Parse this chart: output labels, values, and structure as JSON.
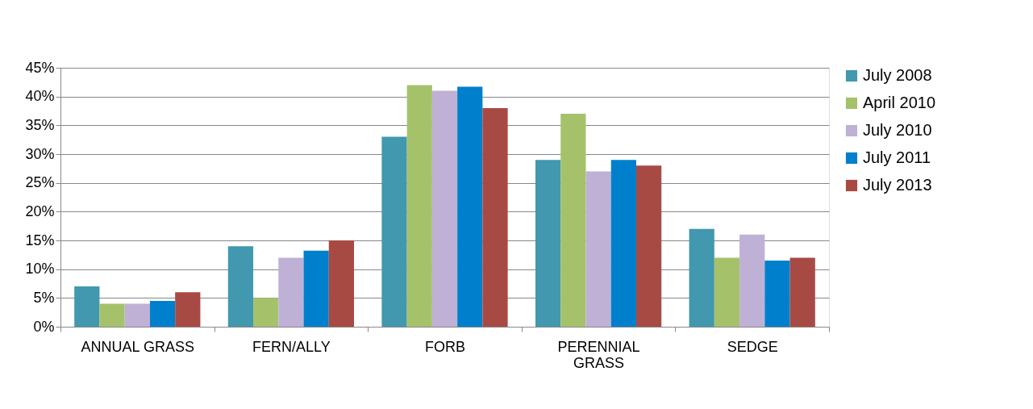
{
  "chart_data": {
    "type": "bar",
    "categories": [
      "ANNUAL GRASS",
      "FERN/ALLY",
      "FORB",
      "PERENNIAL GRASS",
      "SEDGE"
    ],
    "series": [
      {
        "name": "July 2008",
        "color": "#4198af",
        "values": [
          7,
          14,
          33,
          29,
          17
        ]
      },
      {
        "name": "April 2010",
        "color": "#a5c26b",
        "values": [
          4,
          5,
          42,
          37,
          12
        ]
      },
      {
        "name": "July 2010",
        "color": "#bfb1d5",
        "values": [
          4,
          12,
          41,
          27,
          16
        ]
      },
      {
        "name": "July 2011",
        "color": "#0080cc",
        "values": [
          4.5,
          13.2,
          41.7,
          29,
          11.5
        ]
      },
      {
        "name": "July 2013",
        "color": "#a84a44",
        "values": [
          6,
          15,
          38,
          28,
          12
        ]
      }
    ],
    "ylim": [
      0,
      45
    ],
    "yticks": [
      {
        "value": 0,
        "label": "0%"
      },
      {
        "value": 5,
        "label": "5%"
      },
      {
        "value": 10,
        "label": "10%"
      },
      {
        "value": 15,
        "label": "15%"
      },
      {
        "value": 20,
        "label": "20%"
      },
      {
        "value": 25,
        "label": "25%"
      },
      {
        "value": 30,
        "label": "30%"
      },
      {
        "value": 35,
        "label": "35%"
      },
      {
        "value": 40,
        "label": "40%"
      },
      {
        "value": 45,
        "label": "45%"
      }
    ],
    "grid": "y",
    "legend": "right"
  }
}
